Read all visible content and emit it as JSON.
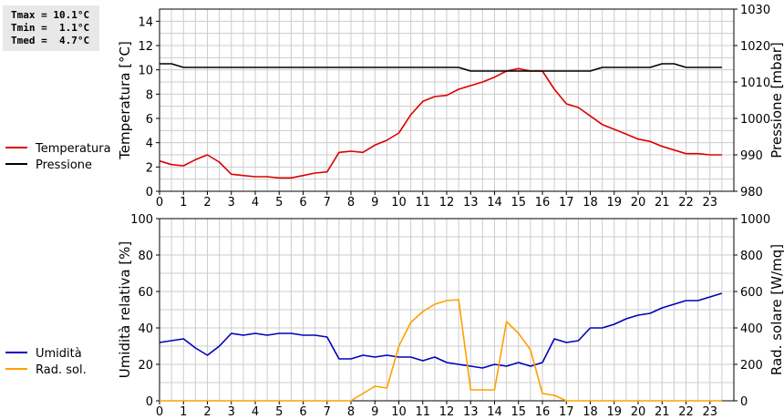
{
  "stats": {
    "tmax": "Tmax = 10.1°C",
    "tmin": "Tmin =  1.1°C",
    "tmed": "Tmed =  4.7°C"
  },
  "colors": {
    "temperature": "#dd0000",
    "pressure": "#000000",
    "humidity": "#0000bb",
    "radiation": "#ffa000",
    "grid": "#cccccc"
  },
  "chart_data": [
    {
      "type": "line",
      "xlabel": "",
      "ylabel_left": "Temperatura [°C]",
      "ylabel_right": "Pressione [mbar]",
      "x_ticks": [
        "0",
        "1",
        "2",
        "3",
        "4",
        "5",
        "6",
        "7",
        "8",
        "9",
        "10",
        "11",
        "12",
        "13",
        "14",
        "15",
        "16",
        "17",
        "18",
        "19",
        "20",
        "21",
        "22",
        "23"
      ],
      "x_range": [
        0,
        24
      ],
      "ylim_left": [
        0,
        15
      ],
      "yticks_left": [
        0,
        2,
        4,
        6,
        8,
        10,
        12,
        14
      ],
      "ylim_right": [
        980,
        1030
      ],
      "yticks_right": [
        980,
        990,
        1000,
        1010,
        1020,
        1030
      ],
      "grid": true,
      "legend_position": "left",
      "series": [
        {
          "name": "Temperatura",
          "axis": "left",
          "x": [
            0,
            0.5,
            1,
            1.5,
            2,
            2.5,
            3,
            3.5,
            4,
            4.5,
            5,
            5.5,
            6,
            6.5,
            7,
            7.5,
            8,
            8.5,
            9,
            9.5,
            10,
            10.5,
            11,
            11.5,
            12,
            12.5,
            13,
            13.5,
            14,
            14.5,
            15,
            15.5,
            16,
            16.5,
            17,
            17.5,
            18,
            18.5,
            19,
            19.5,
            20,
            20.5,
            21,
            21.5,
            22,
            22.5,
            23,
            23.5
          ],
          "values": [
            2.5,
            2.2,
            2.1,
            2.6,
            3.0,
            2.4,
            1.4,
            1.3,
            1.2,
            1.2,
            1.1,
            1.1,
            1.3,
            1.5,
            1.6,
            3.2,
            3.3,
            3.2,
            3.8,
            4.2,
            4.8,
            6.3,
            7.4,
            7.8,
            7.9,
            8.4,
            8.7,
            9.0,
            9.4,
            9.9,
            10.1,
            9.9,
            9.9,
            8.4,
            7.2,
            6.9,
            6.2,
            5.5,
            5.1,
            4.7,
            4.3,
            4.1,
            3.7,
            3.4,
            3.1,
            3.1,
            3.0,
            3.0
          ]
        },
        {
          "name": "Pressione",
          "axis": "right",
          "x": [
            0,
            0.5,
            1,
            12.5,
            13,
            18,
            18.5,
            20.5,
            21,
            21.5,
            22,
            23.5
          ],
          "values": [
            1015,
            1015,
            1014,
            1014,
            1013,
            1013,
            1014,
            1014,
            1015,
            1015,
            1014,
            1014
          ]
        }
      ]
    },
    {
      "type": "line",
      "xlabel": "",
      "ylabel_left": "Umidità relativa [%]",
      "ylabel_right": "Rad. solare [W/mq]",
      "x_ticks": [
        "0",
        "1",
        "2",
        "3",
        "4",
        "5",
        "6",
        "7",
        "8",
        "9",
        "10",
        "11",
        "12",
        "13",
        "14",
        "15",
        "16",
        "17",
        "18",
        "19",
        "20",
        "21",
        "22",
        "23"
      ],
      "x_range": [
        0,
        24
      ],
      "ylim_left": [
        0,
        100
      ],
      "yticks_left": [
        0,
        20,
        40,
        60,
        80,
        100
      ],
      "ylim_right": [
        0,
        1000
      ],
      "yticks_right": [
        0,
        200,
        400,
        600,
        800,
        1000
      ],
      "grid": true,
      "legend_position": "left",
      "series": [
        {
          "name": "Umidità",
          "axis": "left",
          "x": [
            0,
            0.5,
            1,
            1.5,
            2,
            2.5,
            3,
            3.5,
            4,
            4.5,
            5,
            5.5,
            6,
            6.5,
            7,
            7.5,
            8,
            8.5,
            9,
            9.5,
            10,
            10.5,
            11,
            11.5,
            12,
            12.5,
            13,
            13.5,
            14,
            14.5,
            15,
            15.5,
            16,
            16.5,
            17,
            17.5,
            18,
            18.5,
            19,
            19.5,
            20,
            20.5,
            21,
            21.5,
            22,
            22.5,
            23,
            23.5
          ],
          "values": [
            32,
            33,
            34,
            29,
            25,
            30,
            37,
            36,
            37,
            36,
            37,
            37,
            36,
            36,
            35,
            23,
            23,
            25,
            24,
            25,
            24,
            24,
            22,
            24,
            21,
            20,
            19,
            18,
            20,
            19,
            21,
            19,
            21,
            34,
            32,
            33,
            40,
            40,
            42,
            45,
            47,
            48,
            51,
            53,
            55,
            55,
            57,
            59
          ]
        },
        {
          "name": "Rad. sol.",
          "axis": "right",
          "x": [
            0,
            8,
            8.5,
            9,
            9.5,
            10,
            10.5,
            11,
            11.5,
            12,
            12.5,
            13,
            13.5,
            14,
            14.5,
            15,
            15.5,
            16,
            16.5,
            17,
            23.5
          ],
          "values": [
            0,
            0,
            40,
            80,
            70,
            300,
            430,
            490,
            530,
            550,
            555,
            60,
            60,
            60,
            435,
            370,
            280,
            40,
            30,
            0,
            0
          ]
        }
      ]
    }
  ]
}
